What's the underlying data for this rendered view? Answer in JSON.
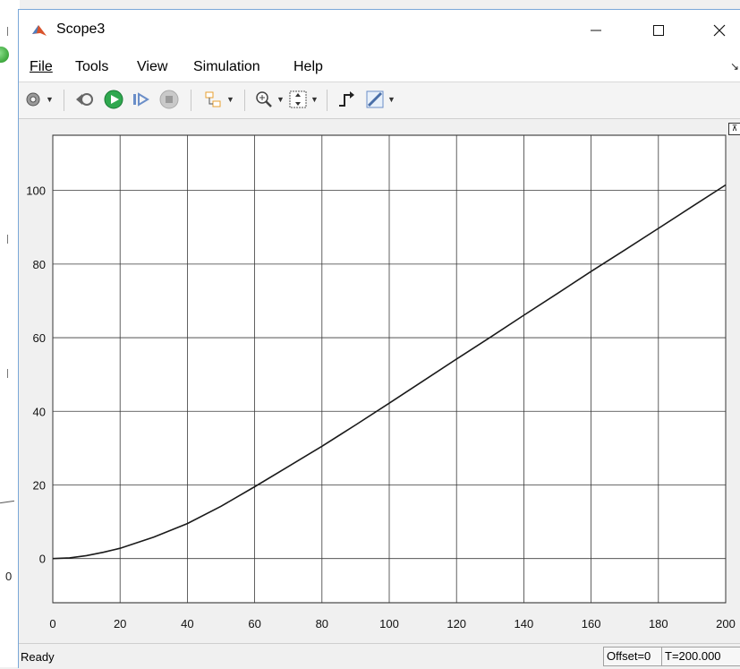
{
  "window": {
    "title": "Scope3"
  },
  "menubar": {
    "items": [
      "File",
      "Tools",
      "View",
      "Simulation",
      "Help"
    ]
  },
  "toolbar": {
    "icons": [
      "settings-icon",
      "step-back-icon",
      "run-icon",
      "step-forward-icon",
      "stop-icon",
      "highlight-block-icon",
      "zoom-in-icon",
      "scale-axes-icon",
      "triggers-icon",
      "measurements-icon"
    ]
  },
  "colors": {
    "plot_bg": "#ffffff",
    "grid": "#3a3a3a",
    "signal": "#1a1a1a",
    "window_accent": "#7aa7d8"
  },
  "chart_data": {
    "type": "line",
    "title": "",
    "xlabel": "",
    "ylabel": "",
    "xlim": [
      0,
      200
    ],
    "ylim": [
      -12,
      115
    ],
    "xticks": [
      0,
      20,
      40,
      60,
      80,
      100,
      120,
      140,
      160,
      180,
      200
    ],
    "yticks": [
      0,
      20,
      40,
      60,
      80,
      100
    ],
    "grid": true,
    "series": [
      {
        "x": [
          0,
          5,
          10,
          15,
          20,
          30,
          40,
          50,
          60,
          70,
          80,
          90,
          100,
          110,
          120,
          130,
          140,
          150,
          160,
          170,
          180,
          190,
          200
        ],
        "y": [
          0,
          0.2,
          0.8,
          1.7,
          2.8,
          5.8,
          9.5,
          14.2,
          19.5,
          25,
          30.5,
          36.3,
          42.2,
          48.2,
          54.2,
          60.1,
          66.1,
          72.0,
          78.0,
          83.8,
          89.7,
          95.6,
          101.5
        ]
      }
    ]
  },
  "status": {
    "ready": "Ready",
    "offset": "Offset=0",
    "time": "T=200.000"
  }
}
